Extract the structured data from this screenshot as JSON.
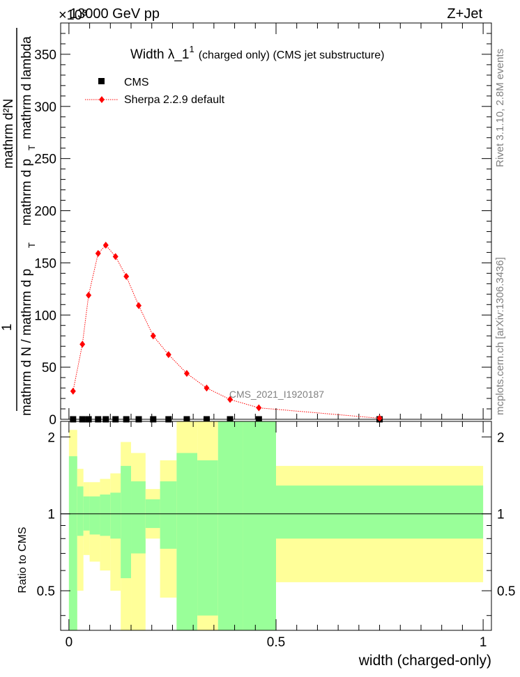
{
  "header": {
    "left": "13000 GeV pp",
    "right": "Z+Jet"
  },
  "top_scale": "×10³",
  "side_labels": {
    "rivet": "Rivet 3.1.10,  2.8M events",
    "mcplots": "mcplots.cern.ch [arXiv:1306.3436]"
  },
  "watermark": "CMS_2021_I1920187",
  "chart_data": [
    {
      "type": "scatter",
      "title": "Width λ_1¹ (charged only) (CMS jet substructure)",
      "title_main": "Width λ_1",
      "title_sup": "1",
      "title_rest": "(charged only) (CMS jet substructure)",
      "ylabel_numerator": "1",
      "ylabel_denominator": "mathrm d N / mathrm d p_T mathrm d p_T mathrm d lambda",
      "ylabel_lines": [
        "mathrm d²N",
        "mathrm d p",
        "T",
        "mathrm d lambda"
      ],
      "ylabel_denominator_text": "mathrm d N / mathrm d p",
      "ylabel_denominator_sub": "T",
      "ylim": [
        0,
        380
      ],
      "yticks": [
        0,
        50,
        100,
        150,
        200,
        250,
        300,
        350
      ],
      "xlim": [
        -0.02,
        1.02
      ],
      "legend_position": "top-left",
      "legend": [
        {
          "name": "CMS",
          "marker": "square",
          "color": "#000000"
        },
        {
          "name": "Sherpa 2.2.9 default",
          "marker": "diamond",
          "color": "#ff0000"
        }
      ],
      "series": [
        {
          "name": "Sherpa 2.2.9 default",
          "color": "#ff0000",
          "x": [
            0.01,
            0.0325,
            0.0475,
            0.0705,
            0.089,
            0.1125,
            0.1385,
            0.1685,
            0.2035,
            0.2405,
            0.2845,
            0.3325,
            0.389,
            0.4585,
            0.75
          ],
          "y": [
            27,
            72,
            119,
            159,
            167,
            156,
            137,
            109,
            80,
            62,
            44,
            30,
            19,
            11,
            1
          ]
        },
        {
          "name": "CMS",
          "color": "#000000",
          "x": [
            0.01,
            0.0325,
            0.0475,
            0.0705,
            0.089,
            0.1125,
            0.1385,
            0.1685,
            0.2035,
            0.2405,
            0.2845,
            0.3325,
            0.389,
            0.4585,
            0.75
          ],
          "y": [
            0,
            0,
            0,
            0,
            0,
            0,
            0,
            0,
            0,
            0,
            0,
            0,
            0,
            0,
            0
          ]
        }
      ]
    },
    {
      "type": "area",
      "ylabel": "Ratio to CMS",
      "xlabel": "width (charged-only)",
      "xlim": [
        -0.02,
        1.02
      ],
      "ylim": [
        0.35,
        2.3
      ],
      "xticks": [
        0,
        0.5,
        1
      ],
      "xtick_labels": [
        "0",
        "0.5",
        "1"
      ],
      "yticks": [
        0.5,
        1,
        2
      ],
      "ytick_labels": [
        "0.5",
        "1",
        "2"
      ],
      "reference_line": 1,
      "colors": {
        "inner_band": "#99ff99",
        "outer_band": "#ffff99"
      },
      "bins": [
        {
          "x0": 0.0,
          "x1": 0.02,
          "g": [
            0.35,
            1.68
          ],
          "y": [
            0.35,
            2.13
          ]
        },
        {
          "x0": 0.02,
          "x1": 0.035,
          "g": [
            0.82,
            1.28
          ],
          "y": [
            0.5,
            1.5
          ]
        },
        {
          "x0": 0.035,
          "x1": 0.05,
          "g": [
            0.86,
            1.17
          ],
          "y": [
            0.69,
            1.33
          ]
        },
        {
          "x0": 0.05,
          "x1": 0.075,
          "g": [
            0.83,
            1.17
          ],
          "y": [
            0.65,
            1.33
          ]
        },
        {
          "x0": 0.075,
          "x1": 0.1,
          "g": [
            0.82,
            1.19
          ],
          "y": [
            0.6,
            1.37
          ]
        },
        {
          "x0": 0.1,
          "x1": 0.125,
          "g": [
            0.8,
            1.21
          ],
          "y": [
            0.5,
            1.44
          ]
        },
        {
          "x0": 0.125,
          "x1": 0.15,
          "g": [
            0.56,
            1.54
          ],
          "y": [
            0.35,
            1.91
          ]
        },
        {
          "x0": 0.15,
          "x1": 0.185,
          "g": [
            0.7,
            1.34
          ],
          "y": [
            0.35,
            1.73
          ]
        },
        {
          "x0": 0.185,
          "x1": 0.22,
          "g": [
            0.88,
            1.14
          ],
          "y": [
            0.8,
            1.25
          ]
        },
        {
          "x0": 0.22,
          "x1": 0.26,
          "g": [
            0.73,
            1.34
          ],
          "y": [
            0.47,
            1.62
          ]
        },
        {
          "x0": 0.26,
          "x1": 0.31,
          "g": [
            0.35,
            1.73
          ],
          "y": [
            0.35,
            2.36
          ]
        },
        {
          "x0": 0.31,
          "x1": 0.36,
          "g": [
            0.4,
            1.62
          ],
          "y": [
            0.35,
            2.36
          ]
        },
        {
          "x0": 0.36,
          "x1": 0.42,
          "g": [
            0.35,
            2.36
          ],
          "y": [
            0.35,
            2.36
          ]
        },
        {
          "x0": 0.42,
          "x1": 0.5,
          "g": [
            0.35,
            2.36
          ],
          "y": [
            0.35,
            2.36
          ]
        },
        {
          "x0": 0.5,
          "x1": 1.0,
          "g": [
            0.8,
            1.29
          ],
          "y": [
            0.54,
            1.54
          ]
        }
      ]
    }
  ]
}
